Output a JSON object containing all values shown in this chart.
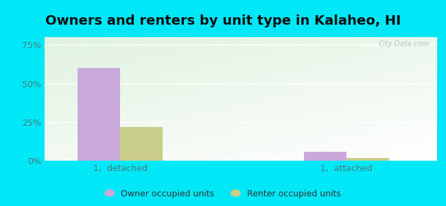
{
  "title": "Owners and renters by unit type in Kalaheo, HI",
  "categories": [
    "1,  detached",
    "1,  attached"
  ],
  "owner_values": [
    60.0,
    6.0
  ],
  "renter_values": [
    22.0,
    2.0
  ],
  "owner_color": "#c9a8dc",
  "renter_color": "#c8cd8a",
  "owner_label": "Owner occupied units",
  "renter_label": "Renter occupied units",
  "yticks": [
    0,
    25,
    50,
    75
  ],
  "ylim": [
    0,
    80
  ],
  "background_outer": "#00e8f8",
  "watermark": "City-Data.com",
  "title_fontsize": 14,
  "bar_width": 0.28,
  "x_positions": [
    0.35,
    1.85
  ]
}
